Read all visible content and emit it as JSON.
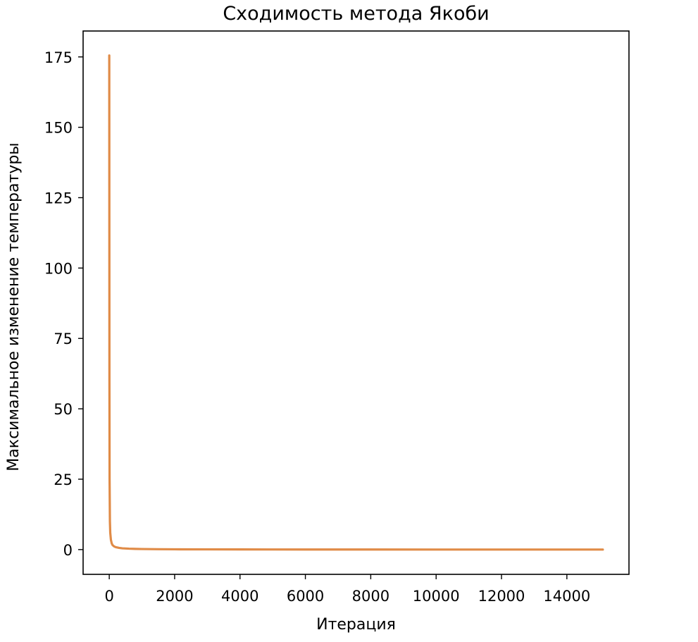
{
  "chart_data": {
    "type": "line",
    "title": "Сходимость метода Якоби",
    "xlabel": "Итерация",
    "ylabel": "Максимальное изменение температуры",
    "xlim": [
      -800,
      15900
    ],
    "ylim": [
      -8.8,
      184.2
    ],
    "xticks": [
      0,
      2000,
      4000,
      6000,
      8000,
      10000,
      12000,
      14000
    ],
    "xtick_labels": [
      "0",
      "2000",
      "4000",
      "6000",
      "8000",
      "10000",
      "12000",
      "14000"
    ],
    "yticks": [
      0,
      25,
      50,
      75,
      100,
      125,
      150,
      175
    ],
    "ytick_labels": [
      "0",
      "25",
      "50",
      "75",
      "100",
      "125",
      "150",
      "175"
    ],
    "grid": false,
    "series": [
      {
        "color": "#e08b47",
        "x": [
          0,
          5,
          10,
          20,
          30,
          50,
          75,
          100,
          150,
          200,
          300,
          400,
          600,
          800,
          1000,
          1500,
          2000,
          3000,
          4000,
          6000,
          8000,
          10000,
          12000,
          14000,
          15100
        ],
        "y": [
          175.5,
          60,
          25,
          10,
          6,
          3.5,
          2.2,
          1.6,
          1.1,
          0.85,
          0.6,
          0.45,
          0.32,
          0.25,
          0.2,
          0.14,
          0.1,
          0.07,
          0.05,
          0.03,
          0.02,
          0.015,
          0.01,
          0.008,
          0.006
        ]
      }
    ]
  }
}
